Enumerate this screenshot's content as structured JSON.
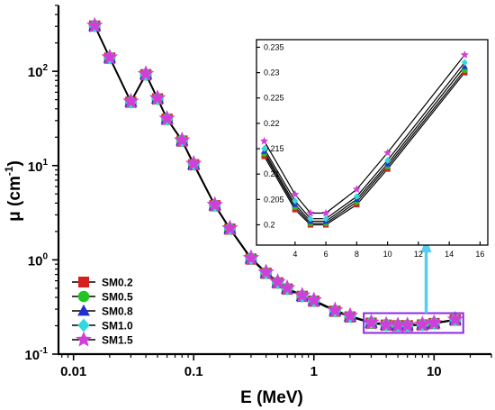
{
  "chart_data": [
    {
      "type": "line",
      "title": "",
      "xlabel": "E (MeV)",
      "ylabel": "μ (cm",
      "ylabel_sup": "-1",
      "ylabel_close": ")",
      "xscale": "log",
      "yscale": "log",
      "xlim": [
        0.0075,
        30
      ],
      "ylim": [
        0.1,
        500
      ],
      "x_ticks": [
        {
          "value": 0.01,
          "label": "0.01"
        },
        {
          "value": 0.1,
          "label": "0.1"
        },
        {
          "value": 1,
          "label": "1"
        },
        {
          "value": 10,
          "label": "10"
        }
      ],
      "y_ticks": [
        {
          "value": 0.1,
          "base": "10",
          "exp": "-1"
        },
        {
          "value": 1,
          "base": "10",
          "exp": "0"
        },
        {
          "value": 10,
          "base": "10",
          "exp": "1"
        },
        {
          "value": 100,
          "base": "10",
          "exp": "2"
        }
      ],
      "grid": false,
      "legend_position": "bottom-left",
      "x": [
        0.015,
        0.02,
        0.03,
        0.04,
        0.05,
        0.06,
        0.08,
        0.1,
        0.15,
        0.2,
        0.3,
        0.4,
        0.5,
        0.6,
        0.8,
        1.0,
        1.5,
        2.0,
        3.0,
        4.0,
        5.0,
        6.0,
        8.0,
        10.0,
        15.0
      ],
      "series": [
        {
          "name": "SM0.2",
          "color": "#d62020",
          "marker": "square",
          "values": [
            302,
            138,
            47,
            92,
            51,
            31,
            18.2,
            10.2,
            3.75,
            2.12,
            1.02,
            0.72,
            0.57,
            0.49,
            0.41,
            0.365,
            0.285,
            0.248,
            0.213,
            0.203,
            0.2,
            0.2,
            0.204,
            0.211,
            0.23
          ]
        },
        {
          "name": "SM0.5",
          "color": "#22c422",
          "marker": "circle",
          "values": [
            303,
            139,
            47,
            92,
            51,
            31,
            18.3,
            10.3,
            3.77,
            2.13,
            1.03,
            0.725,
            0.572,
            0.492,
            0.412,
            0.366,
            0.286,
            0.249,
            0.214,
            0.204,
            0.201,
            0.201,
            0.205,
            0.212,
            0.231
          ]
        },
        {
          "name": "SM0.8",
          "color": "#2030d0",
          "marker": "triangle",
          "values": [
            304,
            139,
            47.5,
            93,
            51.5,
            31.3,
            18.4,
            10.3,
            3.79,
            2.14,
            1.035,
            0.728,
            0.575,
            0.495,
            0.414,
            0.368,
            0.288,
            0.251,
            0.215,
            0.205,
            0.202,
            0.202,
            0.206,
            0.213,
            0.232
          ]
        },
        {
          "name": "SM1.0",
          "color": "#30d8e0",
          "marker": "diamond",
          "values": [
            305,
            140,
            47.5,
            93,
            51.5,
            31.4,
            18.5,
            10.4,
            3.81,
            2.15,
            1.04,
            0.73,
            0.577,
            0.497,
            0.416,
            0.37,
            0.29,
            0.253,
            0.217,
            0.206,
            0.2025,
            0.2025,
            0.207,
            0.214,
            0.2325
          ]
        },
        {
          "name": "SM1.5",
          "color": "#d040d8",
          "marker": "star",
          "values": [
            306,
            141,
            48,
            94,
            52,
            31.6,
            18.6,
            10.5,
            3.84,
            2.17,
            1.05,
            0.74,
            0.585,
            0.503,
            0.42,
            0.374,
            0.293,
            0.256,
            0.2165,
            0.206,
            0.2025,
            0.2025,
            0.207,
            0.2142,
            0.2335
          ]
        }
      ]
    },
    {
      "type": "line",
      "title": "",
      "xlabel": "",
      "ylabel": "",
      "xlim": [
        1.5,
        16.5
      ],
      "ylim": [
        0.196,
        0.2365
      ],
      "x_ticks": [
        {
          "value": 4,
          "label": "4"
        },
        {
          "value": 6,
          "label": "6"
        },
        {
          "value": 8,
          "label": "8"
        },
        {
          "value": 10,
          "label": "10"
        },
        {
          "value": 12,
          "label": "12"
        },
        {
          "value": 14,
          "label": "14"
        },
        {
          "value": 16,
          "label": "16"
        }
      ],
      "y_ticks": [
        {
          "value": 0.2,
          "label": "0.2"
        },
        {
          "value": 0.205,
          "label": "0.205"
        },
        {
          "value": 0.21,
          "label": "0.21"
        },
        {
          "value": 0.215,
          "label": "0.215"
        },
        {
          "value": 0.22,
          "label": "0.22"
        },
        {
          "value": 0.225,
          "label": "0.225"
        },
        {
          "value": 0.23,
          "label": "0.23"
        },
        {
          "value": 0.235,
          "label": "0.235"
        }
      ],
      "grid": false,
      "x": [
        2,
        4,
        5,
        6,
        8,
        10,
        15
      ],
      "series": [
        {
          "color": "#d62020",
          "marker": "square",
          "values": [
            0.2135,
            0.203,
            0.2,
            0.2,
            0.204,
            0.211,
            0.23
          ]
        },
        {
          "color": "#22c422",
          "marker": "circle",
          "values": [
            0.214,
            0.2035,
            0.2003,
            0.2003,
            0.2045,
            0.2115,
            0.2305
          ]
        },
        {
          "color": "#2030d0",
          "marker": "triangle",
          "values": [
            0.2145,
            0.204,
            0.2007,
            0.2007,
            0.205,
            0.212,
            0.2312
          ]
        },
        {
          "color": "#30d8e0",
          "marker": "diamond",
          "values": [
            0.215,
            0.2047,
            0.2012,
            0.2012,
            0.2056,
            0.2127,
            0.232
          ]
        },
        {
          "color": "#d040d8",
          "marker": "star",
          "values": [
            0.2165,
            0.206,
            0.2023,
            0.2023,
            0.207,
            0.2142,
            0.2335
          ]
        }
      ]
    }
  ],
  "annotations": {
    "highlight_box_color": "#8a2be2",
    "arrow_color": "#55ccf0"
  }
}
